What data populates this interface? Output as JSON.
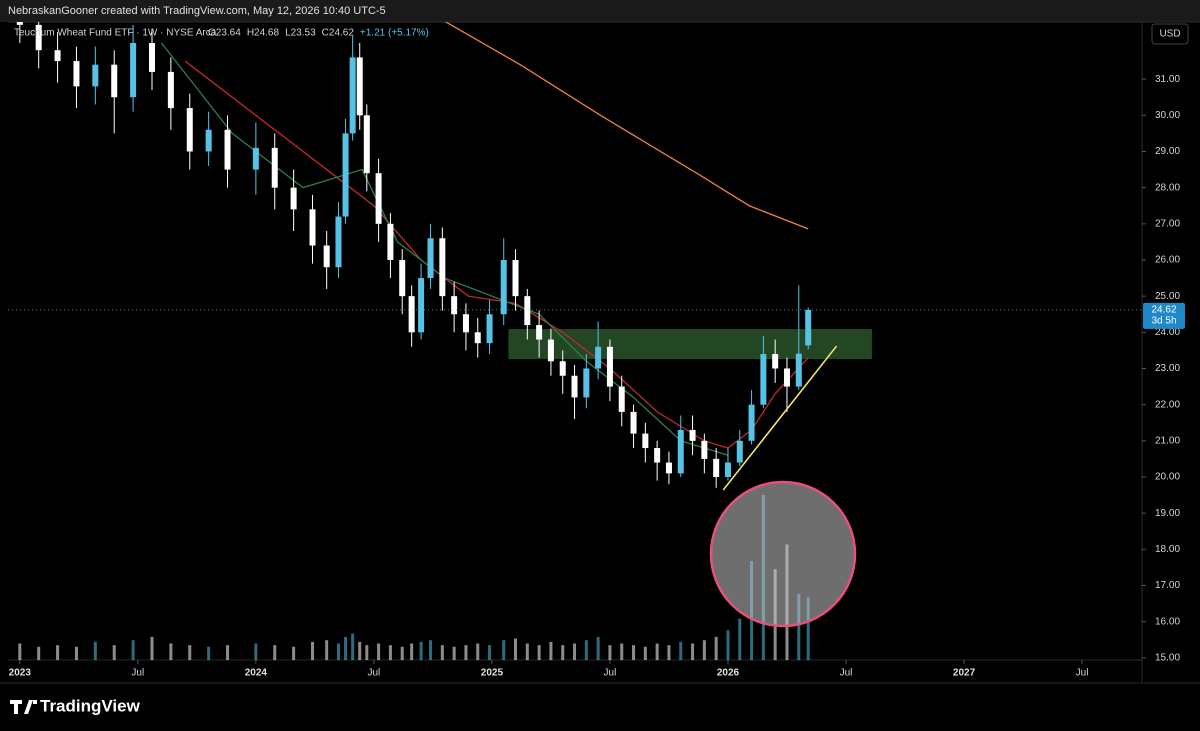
{
  "chart_data": {
    "type": "candlestick",
    "header": "NebraskanGooner created with TradingView.com, May 12, 2026 10:40 UTC-5",
    "symbol": "Teucrium Wheat Fund ETF · 1W · NYSE Arca",
    "legend": [
      "O23.64",
      "H24.68",
      "L23.53",
      "C24.62",
      "+1.21 (+5.17%)"
    ],
    "currency": "USD",
    "brand": "TradingView",
    "last_price_label": "24.62",
    "countdown": "3d 5h",
    "up_color": "#56c3e6",
    "down_color": "#ffffff",
    "x": [
      2023.0,
      2023.08,
      2023.16,
      2023.24,
      2023.32,
      2023.4,
      2023.48,
      2023.56,
      2023.64,
      2023.72,
      2023.8,
      2023.88,
      2024.0,
      2024.08,
      2024.16,
      2024.24,
      2024.3,
      2024.35,
      2024.38,
      2024.41,
      2024.44,
      2024.47,
      2024.52,
      2024.57,
      2024.62,
      2024.66,
      2024.7,
      2024.74,
      2024.79,
      2024.84,
      2024.89,
      2024.94,
      2024.99,
      2025.05,
      2025.1,
      2025.15,
      2025.2,
      2025.25,
      2025.3,
      2025.35,
      2025.4,
      2025.45,
      2025.5,
      2025.55,
      2025.6,
      2025.65,
      2025.7,
      2025.75,
      2025.8,
      2025.85,
      2025.9,
      2025.95,
      2026.0,
      2026.05,
      2026.1,
      2026.15,
      2026.2,
      2026.25,
      2026.3,
      2026.34
    ],
    "open": [
      32.8,
      32.5,
      31.8,
      31.5,
      30.8,
      31.4,
      30.5,
      32.0,
      31.2,
      30.2,
      29.0,
      29.6,
      28.5,
      29.1,
      28.0,
      27.4,
      26.4,
      25.8,
      27.2,
      29.5,
      31.6,
      30.0,
      28.4,
      27.0,
      26.0,
      25.0,
      24.0,
      25.5,
      26.6,
      25.0,
      24.5,
      24.0,
      23.7,
      24.5,
      26.0,
      25.0,
      24.2,
      23.8,
      23.2,
      22.8,
      22.2,
      23.0,
      23.6,
      22.5,
      21.8,
      21.2,
      20.8,
      20.4,
      20.1,
      21.3,
      21.0,
      20.5,
      20.0,
      20.4,
      21.0,
      22.0,
      23.4,
      23.0,
      22.5,
      23.64
    ],
    "high": [
      33.2,
      32.9,
      32.3,
      31.9,
      31.9,
      31.8,
      32.5,
      32.4,
      31.6,
      30.6,
      30.1,
      30.0,
      29.8,
      29.5,
      28.5,
      27.8,
      26.8,
      27.6,
      29.9,
      32.2,
      32.0,
      30.3,
      28.8,
      27.3,
      26.3,
      25.3,
      25.9,
      27.0,
      26.9,
      25.4,
      24.8,
      24.4,
      24.9,
      26.6,
      26.3,
      25.2,
      24.6,
      24.1,
      23.5,
      23.1,
      23.4,
      24.3,
      23.8,
      22.8,
      22.0,
      21.5,
      21.0,
      20.7,
      21.7,
      21.7,
      21.2,
      20.8,
      20.8,
      21.3,
      22.4,
      23.9,
      23.8,
      23.3,
      25.3,
      24.68
    ],
    "low": [
      32.0,
      31.3,
      30.9,
      30.2,
      30.3,
      29.5,
      30.1,
      30.7,
      29.6,
      28.5,
      28.6,
      28.0,
      27.8,
      27.4,
      26.8,
      25.9,
      25.2,
      25.5,
      27.0,
      29.3,
      29.6,
      27.9,
      26.5,
      25.5,
      24.5,
      23.6,
      23.8,
      25.2,
      24.6,
      24.0,
      23.5,
      23.3,
      23.4,
      24.2,
      24.6,
      23.8,
      23.3,
      22.8,
      22.3,
      21.6,
      21.9,
      22.7,
      22.1,
      21.4,
      20.8,
      20.4,
      19.9,
      19.8,
      20.0,
      20.6,
      20.1,
      19.7,
      19.9,
      20.3,
      20.9,
      21.9,
      22.6,
      21.8,
      22.4,
      23.53
    ],
    "close": [
      32.5,
      31.8,
      31.5,
      30.8,
      31.4,
      30.5,
      32.0,
      31.2,
      30.2,
      29.0,
      29.6,
      28.5,
      29.1,
      28.0,
      27.4,
      26.4,
      25.8,
      27.2,
      29.5,
      31.6,
      30.0,
      28.4,
      27.0,
      26.0,
      25.0,
      24.0,
      25.5,
      26.6,
      25.0,
      24.5,
      24.0,
      23.7,
      24.5,
      26.0,
      25.0,
      24.2,
      23.8,
      23.2,
      22.8,
      22.2,
      23.0,
      23.6,
      22.5,
      21.8,
      21.2,
      20.8,
      20.4,
      20.1,
      21.3,
      21.0,
      20.5,
      20.0,
      20.4,
      21.0,
      22.0,
      23.4,
      23.0,
      22.5,
      23.41,
      24.62
    ],
    "volume": [
      10,
      8,
      9,
      8,
      11,
      9,
      12,
      14,
      10,
      9,
      8,
      9,
      10,
      9,
      8,
      11,
      12,
      10,
      14,
      16,
      11,
      9,
      10,
      9,
      8,
      10,
      11,
      12,
      9,
      8,
      9,
      10,
      9,
      12,
      13,
      10,
      9,
      11,
      9,
      10,
      12,
      14,
      9,
      10,
      9,
      8,
      10,
      9,
      11,
      10,
      12,
      14,
      18,
      25,
      60,
      100,
      55,
      70,
      40,
      38
    ],
    "vlim": [
      0,
      100
    ],
    "series": [
      {
        "color": "#f0813a",
        "x": [
          2024.8,
          2025.12,
          2025.46,
          2025.88,
          2026.09,
          2026.34
        ],
        "values": [
          32.6,
          31.4,
          30.0,
          28.35,
          27.5,
          26.86
        ]
      },
      {
        "color": "#c0282d",
        "x": [
          2023.7,
          2024.0,
          2024.3,
          2024.5,
          2024.7,
          2024.9,
          2025.1,
          2025.3,
          2025.5,
          2025.7,
          2025.9,
          2026.0,
          2026.1,
          2026.2,
          2026.34
        ],
        "values": [
          31.5,
          30.0,
          28.5,
          27.5,
          26.0,
          25.0,
          24.8,
          24.0,
          23.0,
          21.8,
          21.0,
          20.8,
          21.3,
          22.3,
          23.3
        ]
      },
      {
        "color": "#2e7d4a",
        "x": [
          2023.6,
          2023.9,
          2024.2,
          2024.45,
          2024.6,
          2024.8,
          2025.0,
          2025.2,
          2025.4,
          2025.6,
          2025.8,
          2026.0
        ],
        "values": [
          32.0,
          29.5,
          28.0,
          28.5,
          26.5,
          25.5,
          25.0,
          24.5,
          23.2,
          22.2,
          21.0,
          20.6
        ]
      }
    ],
    "zone": {
      "color": "#2f5e2f",
      "x": [
        2025.07,
        2026.61
      ],
      "values": [
        23.26,
        24.09
      ]
    },
    "trendline": {
      "color": "#f5e663",
      "x": [
        2025.98,
        2026.46
      ],
      "values": [
        19.64,
        23.62
      ]
    },
    "xlim": [
      2022.95,
      2027.754
    ],
    "ylim": [
      14.94,
      32.58
    ],
    "xticks": [
      {
        "value": 2023,
        "label": "2023"
      },
      {
        "value": 2023.5,
        "label": "Jul"
      },
      {
        "value": 2024,
        "label": "2024"
      },
      {
        "value": 2024.5,
        "label": "Jul"
      },
      {
        "value": 2025,
        "label": "2025"
      },
      {
        "value": 2025.5,
        "label": "Jul"
      },
      {
        "value": 2026,
        "label": "2026"
      },
      {
        "value": 2026.5,
        "label": "Jul"
      },
      {
        "value": 2027,
        "label": "2027"
      },
      {
        "value": 2027.5,
        "label": "Jul"
      }
    ],
    "yticks": [
      {
        "value": 15,
        "label": "15.00"
      },
      {
        "value": 16,
        "label": "16.00"
      },
      {
        "value": 17,
        "label": "17.00"
      },
      {
        "value": 18,
        "label": "18.00"
      },
      {
        "value": 19,
        "label": "19.00"
      },
      {
        "value": 20,
        "label": "20.00"
      },
      {
        "value": 21,
        "label": "21.00"
      },
      {
        "value": 22,
        "label": "22.00"
      },
      {
        "value": 23,
        "label": "23.00"
      },
      {
        "value": 24,
        "label": "24.00"
      },
      {
        "value": 25,
        "label": "25.00"
      },
      {
        "value": 26,
        "label": "26.00"
      },
      {
        "value": 27,
        "label": "27.00"
      },
      {
        "value": 28,
        "label": "28.00"
      },
      {
        "value": 29,
        "label": "29.00"
      },
      {
        "value": 30,
        "label": "30.00"
      },
      {
        "value": 31,
        "label": "31.00"
      }
    ]
  }
}
